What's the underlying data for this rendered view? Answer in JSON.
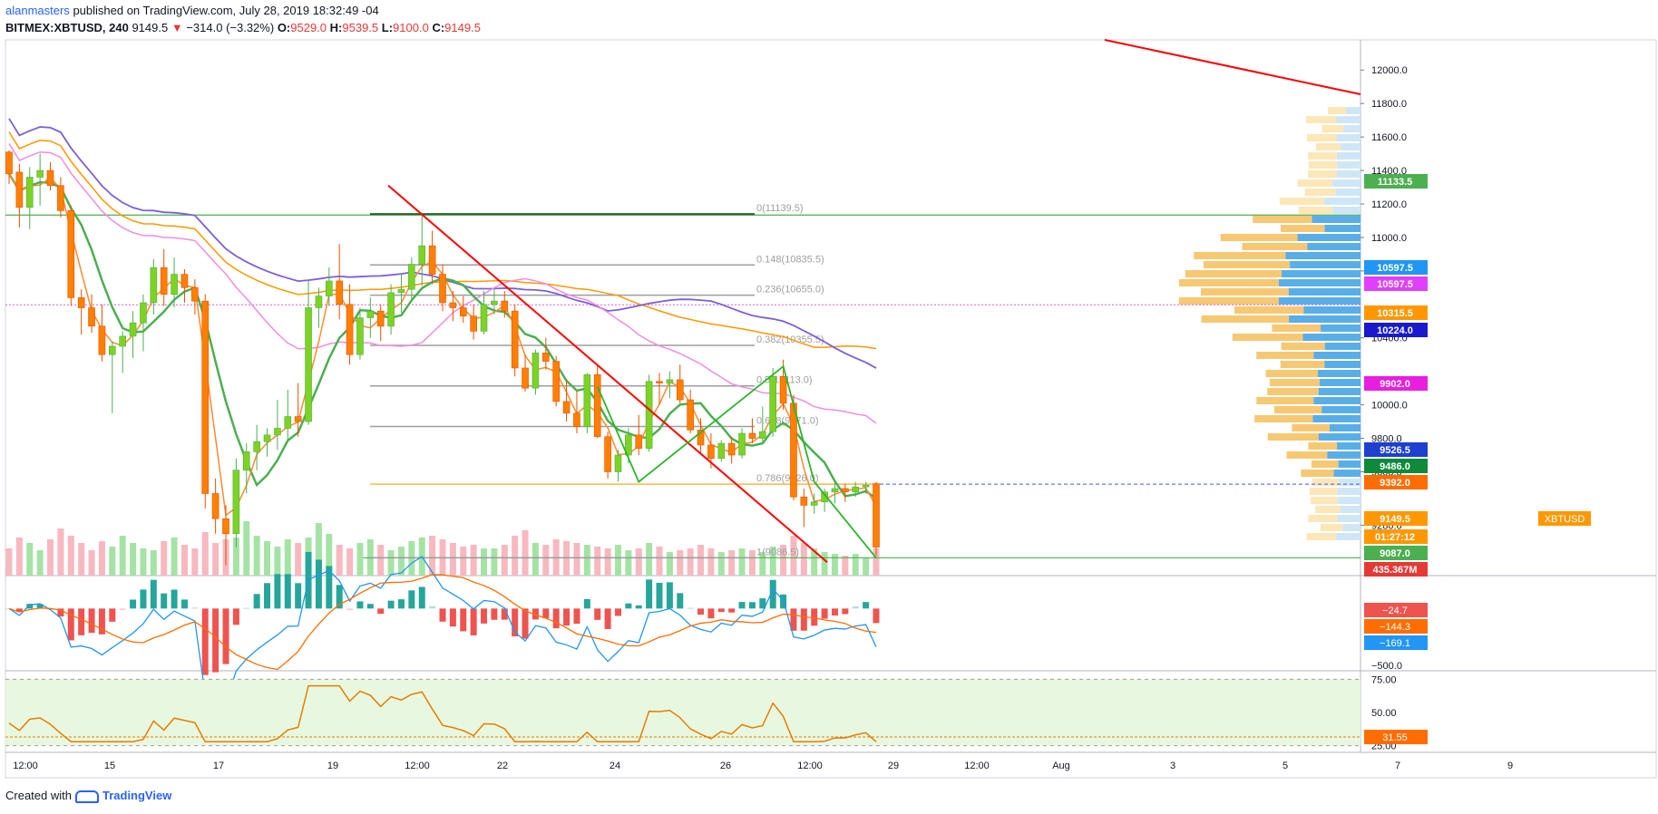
{
  "header": {
    "author": "alanmasters",
    "published_text": "published on TradingView.com, July 28, 2019 18:32:49 -04",
    "symbol": "BITMEX:XBTUSD, 240",
    "last": "9149.5",
    "change_arrow": "▼",
    "change": "−314.0 (−3.32%)",
    "o_label": "O:",
    "o_value": "9529.0",
    "h_label": "H:",
    "h_value": "9539.5",
    "l_label": "L:",
    "l_value": "9100.0",
    "c_label": "C:",
    "c_value": "9149.5"
  },
  "footer": {
    "created_with": "Created with",
    "brand": "TradingView"
  },
  "colors": {
    "up": "#7ed321",
    "down": "#ff7f00",
    "sma": "#7d5fd6",
    "pink": "#f08ce0",
    "orange_ma": "#ff9800",
    "green_ma": "#4caf50",
    "trend_red": "#ff0000",
    "fib_grey": "#9e9e9e",
    "vol_up": "#a5e3a5",
    "vol_down": "#f7b8c0",
    "macd_blue": "#2196f3",
    "macd_orange": "#ff6d00",
    "rsi": "#e67e00"
  },
  "chart_data": [
    {
      "type": "candlestick",
      "title": "BITMEX:XBTUSD, 240",
      "ylim": [
        8980,
        12180
      ],
      "x_ticks": [
        "12:00",
        "15",
        "17",
        "19",
        "12:00",
        "22",
        "24",
        "26",
        "12:00",
        "29",
        "12:00",
        "Aug",
        "3",
        "5",
        "7",
        "9"
      ],
      "y_ticks": [
        "12000.0",
        "11800.0",
        "11600.0",
        "11400.0",
        "11200.0",
        "11000.0",
        "10800.0",
        "10400.0",
        "10000.0",
        "9800.0",
        "9600.0",
        "9280.0"
      ],
      "price_labels": [
        {
          "value": "11133.5",
          "color": "#4caf50"
        },
        {
          "value": "10597.5",
          "color": "#2196f3"
        },
        {
          "value": "10597.5",
          "color": "#e040fb"
        },
        {
          "value": "10315.5",
          "color": "#ff9800"
        },
        {
          "value": "10224.0",
          "color": "#1a1acc"
        },
        {
          "value": "9902.0",
          "color": "#e91ee0"
        },
        {
          "value": "9526.5",
          "color": "#1e40d0"
        },
        {
          "value": "9486.0",
          "color": "#0e8a3a"
        },
        {
          "value": "9392.0",
          "color": "#ff6d00"
        },
        {
          "value": "9149.5",
          "color": "#ff9800"
        },
        {
          "value": "01:27:12",
          "color": "#ff9800"
        },
        {
          "value": "9087.0",
          "color": "#4caf50"
        },
        {
          "value": "435.367M",
          "color": "#e53935"
        }
      ],
      "symbol_tag": "XBTUSD",
      "fib_levels": [
        {
          "label": "0(11139.5)",
          "price": 11139.5
        },
        {
          "label": "0.148(10835.5)",
          "price": 10835.5
        },
        {
          "label": "0.236(10655.0)",
          "price": 10655.0
        },
        {
          "label": "0.382(10355.5)",
          "price": 10355.5
        },
        {
          "label": "0.5(10113.0)",
          "price": 10113.0
        },
        {
          "label": "0.618(9871.0)",
          "price": 9871.0
        },
        {
          "label": "0.786(9526.0)",
          "price": 9526.0
        },
        {
          "label": "1(9086.5)",
          "price": 9086.5
        }
      ],
      "candles": [
        [
          11510,
          11520,
          11320,
          11380
        ],
        [
          11390,
          11440,
          11060,
          11180
        ],
        [
          11180,
          11420,
          11050,
          11360
        ],
        [
          11360,
          11500,
          11190,
          11400
        ],
        [
          11400,
          11450,
          11280,
          11310
        ],
        [
          11310,
          11360,
          11120,
          11160
        ],
        [
          11160,
          11190,
          10590,
          10640
        ],
        [
          10640,
          10690,
          10420,
          10580
        ],
        [
          10580,
          10660,
          10430,
          10470
        ],
        [
          10470,
          10600,
          10260,
          10300
        ],
        [
          10300,
          10380,
          9950,
          10350
        ],
        [
          10350,
          10440,
          10190,
          10410
        ],
        [
          10410,
          10560,
          10280,
          10490
        ],
        [
          10490,
          10660,
          10320,
          10610
        ],
        [
          10610,
          10870,
          10540,
          10820
        ],
        [
          10820,
          10930,
          10590,
          10660
        ],
        [
          10660,
          10880,
          10580,
          10780
        ],
        [
          10780,
          10810,
          10610,
          10700
        ],
        [
          10700,
          10750,
          10540,
          10620
        ],
        [
          10620,
          10660,
          9380,
          9470
        ],
        [
          9470,
          9560,
          9230,
          9320
        ],
        [
          9320,
          9400,
          9040,
          9230
        ],
        [
          9230,
          9680,
          9150,
          9610
        ],
        [
          9610,
          9770,
          9470,
          9720
        ],
        [
          9720,
          9880,
          9610,
          9780
        ],
        [
          9780,
          9860,
          9690,
          9820
        ],
        [
          9820,
          10030,
          9730,
          9860
        ],
        [
          9860,
          10090,
          9790,
          9930
        ],
        [
          9930,
          10130,
          9810,
          9900
        ],
        [
          9900,
          10740,
          9880,
          10580
        ],
        [
          10580,
          10700,
          10460,
          10650
        ],
        [
          10650,
          10820,
          10590,
          10740
        ],
        [
          10740,
          10960,
          10510,
          10600
        ],
        [
          10600,
          10720,
          10240,
          10300
        ],
        [
          10300,
          10580,
          10270,
          10520
        ],
        [
          10520,
          10640,
          10400,
          10560
        ],
        [
          10560,
          10600,
          10380,
          10470
        ],
        [
          10470,
          10720,
          10420,
          10670
        ],
        [
          10670,
          10780,
          10550,
          10690
        ],
        [
          10690,
          10880,
          10620,
          10840
        ],
        [
          10840,
          11140,
          10710,
          10950
        ],
        [
          10950,
          11040,
          10720,
          10780
        ],
        [
          10780,
          10840,
          10560,
          10610
        ],
        [
          10610,
          10680,
          10500,
          10580
        ],
        [
          10580,
          10650,
          10490,
          10530
        ],
        [
          10530,
          10600,
          10390,
          10440
        ],
        [
          10440,
          10680,
          10420,
          10600
        ],
        [
          10600,
          10690,
          10540,
          10620
        ],
        [
          10620,
          10680,
          10520,
          10560
        ],
        [
          10560,
          10600,
          10170,
          10220
        ],
        [
          10220,
          10300,
          10080,
          10100
        ],
        [
          10100,
          10330,
          10060,
          10310
        ],
        [
          10310,
          10400,
          10210,
          10260
        ],
        [
          10260,
          10290,
          9990,
          10020
        ],
        [
          10020,
          10150,
          9900,
          9950
        ],
        [
          9950,
          10080,
          9830,
          9870
        ],
        [
          9870,
          10190,
          9830,
          10180
        ],
        [
          10180,
          10230,
          9800,
          9810
        ],
        [
          9810,
          9840,
          9560,
          9600
        ],
        [
          9600,
          9730,
          9540,
          9700
        ],
        [
          9700,
          9860,
          9650,
          9820
        ],
        [
          9820,
          9940,
          9700,
          9740
        ],
        [
          9740,
          10180,
          9720,
          10140
        ],
        [
          10140,
          10190,
          10000,
          10130
        ],
        [
          10130,
          10200,
          10040,
          10150
        ],
        [
          10150,
          10240,
          10010,
          10030
        ],
        [
          10030,
          10090,
          9830,
          9850
        ],
        [
          9850,
          9920,
          9710,
          9760
        ],
        [
          9760,
          9830,
          9620,
          9680
        ],
        [
          9680,
          9790,
          9660,
          9770
        ],
        [
          9770,
          9810,
          9650,
          9700
        ],
        [
          9700,
          9860,
          9680,
          9830
        ],
        [
          9830,
          9920,
          9770,
          9800
        ],
        [
          9800,
          9990,
          9780,
          9840
        ],
        [
          9840,
          10220,
          9810,
          10170
        ],
        [
          10170,
          10270,
          9970,
          10010
        ],
        [
          10010,
          10060,
          9430,
          9450
        ],
        [
          9450,
          9500,
          9270,
          9400
        ],
        [
          9400,
          9470,
          9350,
          9420
        ],
        [
          9420,
          9500,
          9360,
          9480
        ],
        [
          9480,
          9540,
          9410,
          9500
        ],
        [
          9500,
          9530,
          9420,
          9480
        ],
        [
          9480,
          9540,
          9450,
          9510
        ],
        [
          9510,
          9540,
          9470,
          9520
        ],
        [
          9529,
          9540,
          9100,
          9150
        ]
      ],
      "volume_values": [
        30,
        42,
        36,
        28,
        40,
        52,
        44,
        36,
        28,
        38,
        32,
        44,
        36,
        30,
        28,
        38,
        42,
        34,
        30,
        48,
        36,
        40,
        42,
        60,
        44,
        38,
        32,
        40,
        36,
        42,
        58,
        46,
        34,
        30,
        36,
        40,
        34,
        28,
        32,
        38,
        42,
        44,
        40,
        36,
        32,
        34,
        30,
        30,
        34,
        44,
        50,
        36,
        34,
        40,
        38,
        36,
        34,
        32,
        30,
        34,
        28,
        30,
        36,
        32,
        26,
        28,
        30,
        34,
        30,
        26,
        28,
        30,
        28,
        26,
        32,
        34,
        44,
        36,
        30,
        26,
        24,
        22,
        24,
        20,
        30
      ]
    },
    {
      "type": "line",
      "title": "MACD",
      "ylim": [
        -500,
        250
      ],
      "y_ticks": [
        "−500.0"
      ],
      "value_labels": [
        {
          "value": "−24.7",
          "color": "#ef5350"
        },
        {
          "value": "−144.3",
          "color": "#ff6d00"
        },
        {
          "value": "−169.1",
          "color": "#2196f3"
        }
      ]
    },
    {
      "type": "line",
      "title": "RSI",
      "ylim": [
        20,
        80
      ],
      "y_ticks": [
        "75.00",
        "50.00",
        "25.00"
      ],
      "value_labels": [
        {
          "value": "31.55",
          "color": "#ff6d00"
        }
      ]
    }
  ]
}
